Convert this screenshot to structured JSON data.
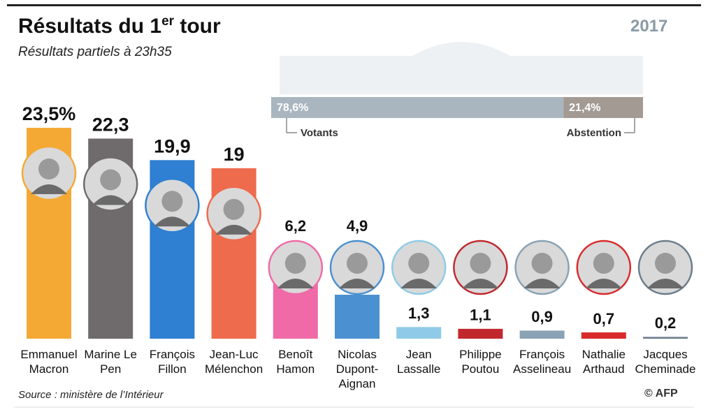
{
  "chart_data": {
    "type": "bar",
    "title": [
      "Résultats du 1",
      "er",
      " tour"
    ],
    "subtitle": "Résultats partiels à 23h35",
    "logo": "2017",
    "categories": [
      "Emmanuel Macron",
      "Marine Le Pen",
      "François Fillon",
      "Jean-Luc Mélenchon",
      "Benoît Hamon",
      "Nicolas Dupont-Aignan",
      "Jean Lassalle",
      "Philippe Poutou",
      "François Asselineau",
      "Nathalie Arthaud",
      "Jacques Cheminade"
    ],
    "values": [
      23.5,
      22.3,
      19.9,
      19,
      6.2,
      4.9,
      1.3,
      1.1,
      0.9,
      0.7,
      0.2
    ],
    "value_labels": [
      "23,5%",
      "22,3",
      "19,9",
      "19",
      "6,2",
      "4,9",
      "1,3",
      "1,1",
      "0,9",
      "0,7",
      "0,2"
    ],
    "colors": [
      "#f4a935",
      "#6f6a6b",
      "#2f7fd2",
      "#ee6b4d",
      "#f06aa8",
      "#4b90d0",
      "#8fcbe8",
      "#c0282d",
      "#8aa2b3",
      "#d92a2c",
      "#6b7c8b"
    ],
    "turnout": {
      "names": [
        "Votants",
        "Abstention"
      ],
      "values": [
        78.6,
        21.4
      ],
      "value_labels": [
        "78,6%",
        "21,4%"
      ],
      "colors": [
        "#a9b6bf",
        "#a39a94"
      ]
    },
    "source": "Source : ministère de l’Intérieur",
    "credit": "© AFP"
  }
}
